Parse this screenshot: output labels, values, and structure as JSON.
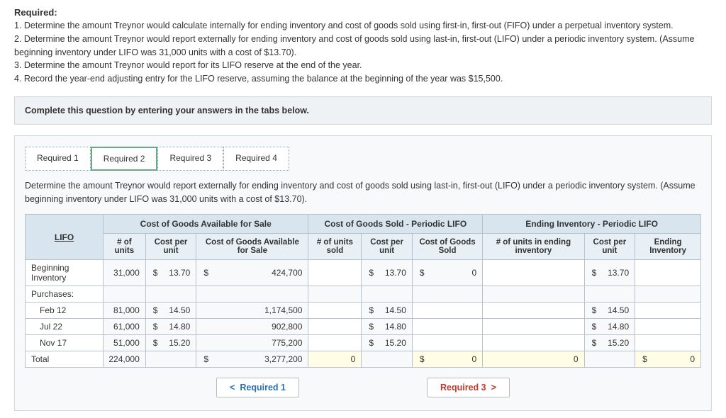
{
  "heading": "Required:",
  "requirements": [
    "1. Determine the amount Treynor would calculate internally for ending inventory and cost of goods sold using first-in, first-out (FIFO) under a perpetual inventory system.",
    "2. Determine the amount Treynor would report externally for ending inventory and cost of goods sold using last-in, first-out (LIFO) under a periodic inventory system. (Assume beginning inventory under LIFO was 31,000 units with a cost of $13.70).",
    "3. Determine the amount Treynor would report for its LIFO reserve at the end of the year.",
    "4. Record the year-end adjusting entry for the LIFO reserve, assuming the balance at the beginning of the year was $15,500."
  ],
  "instruction": "Complete this question by entering your answers in the tabs below.",
  "tabs": [
    {
      "label": "Required 1"
    },
    {
      "label": "Required 2"
    },
    {
      "label": "Required 3"
    },
    {
      "label": "Required 4"
    }
  ],
  "active_tab": 1,
  "tab_desc": "Determine the amount Treynor would report externally for ending inventory and cost of goods sold using last-in, first-out (LIFO) under a periodic inventory system. (Assume beginning inventory under LIFO was 31,000 units with a cost of $13.70).",
  "groups": {
    "g1": "Cost of Goods Available for Sale",
    "g2": "Cost of Goods Sold - Periodic LIFO",
    "g3": "Ending Inventory - Periodic LIFO"
  },
  "cols": {
    "lifo": "LIFO",
    "c1": "# of units",
    "c2": "Cost per unit",
    "c3": "Cost of Goods Available for Sale",
    "c4": "# of units sold",
    "c5": "Cost per unit",
    "c6": "Cost of Goods Sold",
    "c7": "# of units in ending inventory",
    "c8": "Cost per unit",
    "c9": "Ending Inventory"
  },
  "rows": {
    "beg": {
      "label": "Beginning Inventory",
      "units": "31,000",
      "cpu": "13.70",
      "cgas": "424,700",
      "sold_cpu": "13.70",
      "cogs": "0",
      "end_cpu": "13.70"
    },
    "purch": {
      "label": "Purchases:"
    },
    "feb": {
      "label": "Feb 12",
      "units": "81,000",
      "cpu": "14.50",
      "cgas": "1,174,500",
      "sold_cpu": "14.50",
      "end_cpu": "14.50"
    },
    "jul": {
      "label": "Jul 22",
      "units": "61,000",
      "cpu": "14.80",
      "cgas": "902,800",
      "sold_cpu": "14.80",
      "end_cpu": "14.80"
    },
    "nov": {
      "label": "Nov 17",
      "units": "51,000",
      "cpu": "15.20",
      "cgas": "775,200",
      "sold_cpu": "15.20",
      "end_cpu": "15.20"
    },
    "tot": {
      "label": "Total",
      "units": "224,000",
      "cgas": "3,277,200",
      "units_sold": "0",
      "cogs": "0",
      "units_end": "0",
      "end_inv": "0"
    }
  },
  "nav": {
    "prev": "Required 1",
    "next": "Required 3"
  },
  "colors": {
    "header_bg": "#d8e5ef",
    "subheader_bg": "#e8eff5",
    "total_bg": "#fffde6",
    "border": "#b8c2cc",
    "prev_color": "#2b6fb5",
    "next_color": "#c1392b"
  }
}
